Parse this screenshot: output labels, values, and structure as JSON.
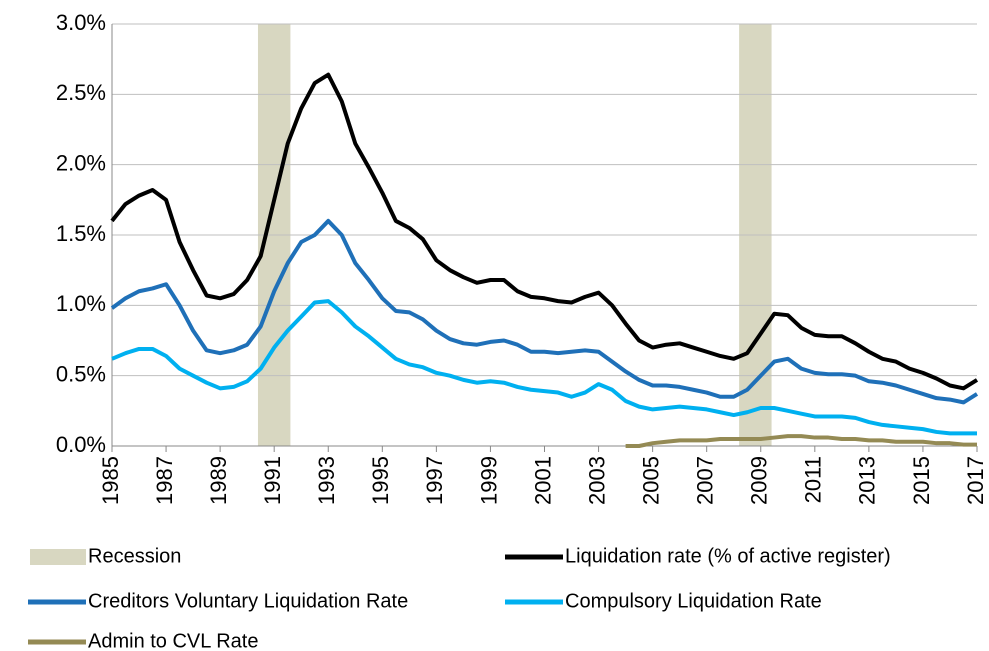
{
  "chart_data": {
    "type": "line",
    "x": [
      1985,
      1985.5,
      1986,
      1986.5,
      1987,
      1987.5,
      1988,
      1988.5,
      1989,
      1989.5,
      1990,
      1990.5,
      1991,
      1991.5,
      1992,
      1992.5,
      1993,
      1993.5,
      1994,
      1994.5,
      1995,
      1995.5,
      1996,
      1996.5,
      1997,
      1997.5,
      1998,
      1998.5,
      1999,
      1999.5,
      2000,
      2000.5,
      2001,
      2001.5,
      2002,
      2002.5,
      2003,
      2003.5,
      2004,
      2004.5,
      2005,
      2005.5,
      2006,
      2006.5,
      2007,
      2007.5,
      2008,
      2008.5,
      2009,
      2009.5,
      2010,
      2010.5,
      2011,
      2011.5,
      2012,
      2012.5,
      2013,
      2013.5,
      2014,
      2014.5,
      2015,
      2015.5,
      2016,
      2016.5,
      2017
    ],
    "series": [
      {
        "name": "Liquidation rate (% of active register)",
        "color": "#000000",
        "values": [
          1.6,
          1.72,
          1.78,
          1.82,
          1.75,
          1.45,
          1.25,
          1.07,
          1.05,
          1.08,
          1.18,
          1.35,
          1.75,
          2.15,
          2.4,
          2.58,
          2.64,
          2.45,
          2.15,
          1.98,
          1.8,
          1.6,
          1.55,
          1.47,
          1.32,
          1.25,
          1.2,
          1.16,
          1.18,
          1.18,
          1.1,
          1.06,
          1.05,
          1.03,
          1.02,
          1.06,
          1.09,
          1.0,
          0.87,
          0.75,
          0.7,
          0.72,
          0.73,
          0.7,
          0.67,
          0.64,
          0.62,
          0.66,
          0.8,
          0.94,
          0.93,
          0.84,
          0.79,
          0.78,
          0.78,
          0.73,
          0.67,
          0.62,
          0.6,
          0.55,
          0.52,
          0.48,
          0.43,
          0.41,
          0.47
        ]
      },
      {
        "name": "Creditors Voluntary Liquidation Rate",
        "color": "#1f70b8",
        "values": [
          0.98,
          1.05,
          1.1,
          1.12,
          1.15,
          1.0,
          0.82,
          0.68,
          0.66,
          0.68,
          0.72,
          0.85,
          1.1,
          1.3,
          1.45,
          1.5,
          1.6,
          1.5,
          1.3,
          1.18,
          1.05,
          0.96,
          0.95,
          0.9,
          0.82,
          0.76,
          0.73,
          0.72,
          0.74,
          0.75,
          0.72,
          0.67,
          0.67,
          0.66,
          0.67,
          0.68,
          0.67,
          0.6,
          0.53,
          0.47,
          0.43,
          0.43,
          0.42,
          0.4,
          0.38,
          0.35,
          0.35,
          0.4,
          0.5,
          0.6,
          0.62,
          0.55,
          0.52,
          0.51,
          0.51,
          0.5,
          0.46,
          0.45,
          0.43,
          0.4,
          0.37,
          0.34,
          0.33,
          0.31,
          0.37
        ]
      },
      {
        "name": "Compulsory Liquidation Rate",
        "color": "#00b0f0",
        "values": [
          0.62,
          0.66,
          0.69,
          0.69,
          0.64,
          0.55,
          0.5,
          0.45,
          0.41,
          0.42,
          0.46,
          0.55,
          0.7,
          0.82,
          0.92,
          1.02,
          1.03,
          0.95,
          0.85,
          0.78,
          0.7,
          0.62,
          0.58,
          0.56,
          0.52,
          0.5,
          0.47,
          0.45,
          0.46,
          0.45,
          0.42,
          0.4,
          0.39,
          0.38,
          0.35,
          0.38,
          0.44,
          0.4,
          0.32,
          0.28,
          0.26,
          0.27,
          0.28,
          0.27,
          0.26,
          0.24,
          0.22,
          0.24,
          0.27,
          0.27,
          0.25,
          0.23,
          0.21,
          0.21,
          0.21,
          0.2,
          0.17,
          0.15,
          0.14,
          0.13,
          0.12,
          0.1,
          0.09,
          0.09,
          0.09
        ]
      },
      {
        "name": "Admin to CVL Rate",
        "color": "#948a54",
        "values": [
          null,
          null,
          null,
          null,
          null,
          null,
          null,
          null,
          null,
          null,
          null,
          null,
          null,
          null,
          null,
          null,
          null,
          null,
          null,
          null,
          null,
          null,
          null,
          null,
          null,
          null,
          null,
          null,
          null,
          null,
          null,
          null,
          null,
          null,
          null,
          null,
          null,
          null,
          0.0,
          0.0,
          0.02,
          0.03,
          0.04,
          0.04,
          0.04,
          0.05,
          0.05,
          0.05,
          0.05,
          0.06,
          0.07,
          0.07,
          0.06,
          0.06,
          0.05,
          0.05,
          0.04,
          0.04,
          0.03,
          0.03,
          0.03,
          0.02,
          0.02,
          0.01,
          0.01
        ]
      }
    ],
    "recession": {
      "name": "Recession",
      "color": "#d8d7c1",
      "ranges": [
        [
          1990.4,
          1991.6
        ],
        [
          2008.2,
          2009.4
        ]
      ]
    },
    "xlim": [
      1985,
      2017
    ],
    "xticks": [
      1985,
      1987,
      1989,
      1991,
      1993,
      1995,
      1997,
      1999,
      2001,
      2003,
      2005,
      2007,
      2009,
      2011,
      2013,
      2015,
      2017
    ],
    "ylim": [
      0,
      3
    ],
    "yticks": [
      {
        "value": 0,
        "label": "0.0%"
      },
      {
        "value": 0.5,
        "label": "0.5%"
      },
      {
        "value": 1,
        "label": "1.0%"
      },
      {
        "value": 1.5,
        "label": "1.5%"
      },
      {
        "value": 2,
        "label": "2.0%"
      },
      {
        "value": 2.5,
        "label": "2.5%"
      },
      {
        "value": 3,
        "label": "3.0%"
      }
    ],
    "grid": true
  }
}
